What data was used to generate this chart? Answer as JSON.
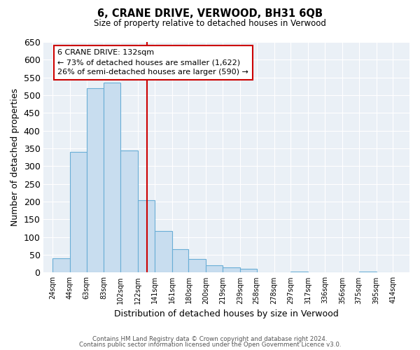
{
  "title": "6, CRANE DRIVE, VERWOOD, BH31 6QB",
  "subtitle": "Size of property relative to detached houses in Verwood",
  "xlabel": "Distribution of detached houses by size in Verwood",
  "ylabel": "Number of detached properties",
  "bin_edges": [
    24,
    44,
    63,
    83,
    102,
    122,
    141,
    161,
    180,
    200,
    219,
    239,
    258,
    278,
    297,
    317,
    336,
    356,
    375,
    395,
    414
  ],
  "bin_labels": [
    "24sqm",
    "44sqm",
    "63sqm",
    "83sqm",
    "102sqm",
    "122sqm",
    "141sqm",
    "161sqm",
    "180sqm",
    "200sqm",
    "219sqm",
    "239sqm",
    "258sqm",
    "278sqm",
    "297sqm",
    "317sqm",
    "336sqm",
    "356sqm",
    "375sqm",
    "395sqm",
    "414sqm"
  ],
  "bar_heights": [
    40,
    340,
    520,
    535,
    345,
    205,
    118,
    65,
    38,
    20,
    14,
    10,
    0,
    0,
    2,
    0,
    0,
    0,
    2,
    0
  ],
  "bar_color": "#c8ddef",
  "bar_edge_color": "#6aaed6",
  "vline_x": 132,
  "vline_color": "#cc0000",
  "annotation_title": "6 CRANE DRIVE: 132sqm",
  "annotation_line1": "← 73% of detached houses are smaller (1,622)",
  "annotation_line2": "26% of semi-detached houses are larger (590) →",
  "annotation_box_color": "#ffffff",
  "annotation_box_edge": "#cc0000",
  "ylim": [
    0,
    650
  ],
  "yticks": [
    0,
    50,
    100,
    150,
    200,
    250,
    300,
    350,
    400,
    450,
    500,
    550,
    600,
    650
  ],
  "footer_line1": "Contains HM Land Registry data © Crown copyright and database right 2024.",
  "footer_line2": "Contains public sector information licensed under the Open Government Licence v3.0.",
  "bg_color": "#eaf0f6"
}
